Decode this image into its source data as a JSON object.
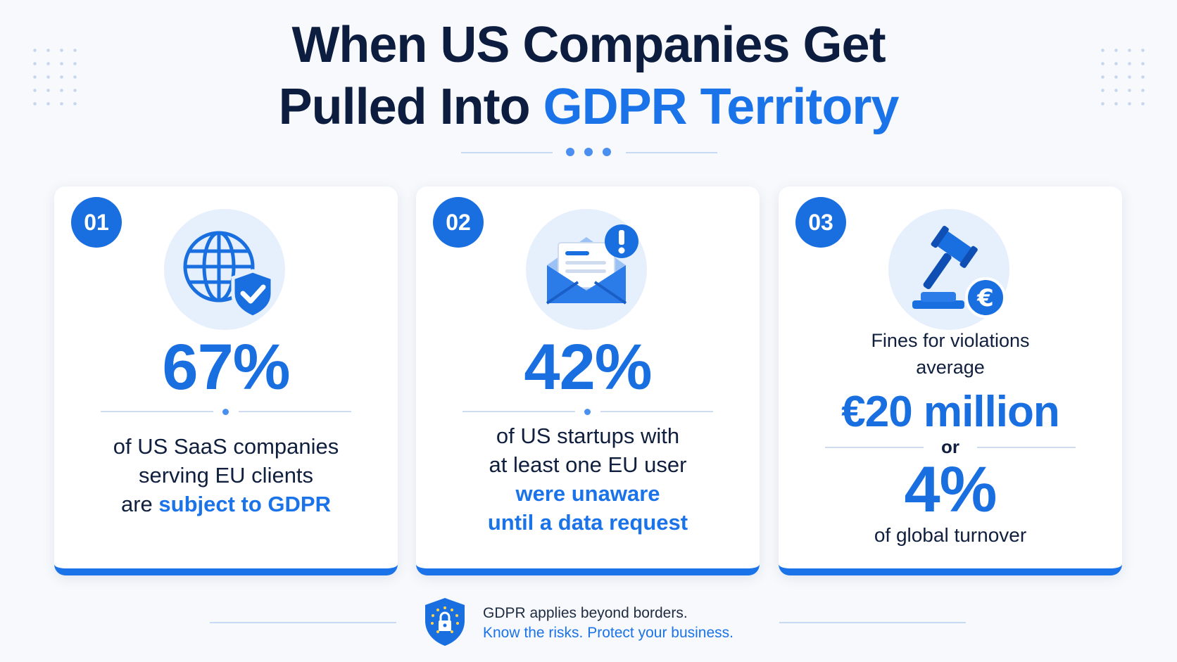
{
  "title": {
    "line1": "When US Companies Get",
    "line2_plain": "Pulled Into ",
    "line2_accent": "GDPR Territory"
  },
  "cards": [
    {
      "number": "01",
      "icon": "globe-shield-icon",
      "stat": "67%",
      "desc_line1": "of US SaaS companies",
      "desc_line2": "serving EU clients",
      "desc_line3_plain": "are ",
      "desc_line3_accent": "subject to GDPR"
    },
    {
      "number": "02",
      "icon": "envelope-alert-icon",
      "stat": "42%",
      "desc_line1": "of US startups with",
      "desc_line2": "at least one EU user",
      "desc_line3_accent": "were unaware",
      "desc_line4_accent": "until a data request"
    },
    {
      "number": "03",
      "icon": "gavel-euro-icon",
      "lead_line1": "Fines for violations",
      "lead_line2": "average",
      "stat": "€20 million",
      "connector": "or",
      "stat2": "4%",
      "tail": "of global turnover"
    }
  ],
  "footer": {
    "icon": "shield-lock-icon",
    "line1": "GDPR applies beyond borders.",
    "line2": "Know the risks. Protect your business."
  },
  "colors": {
    "accent": "#1a73e8",
    "navy": "#0c1d3f",
    "icon_bg": "#e6effc"
  }
}
